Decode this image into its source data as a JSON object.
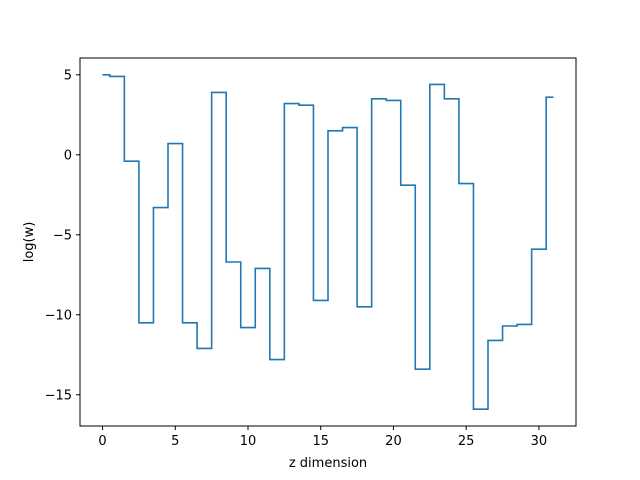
{
  "chart_data": {
    "type": "line",
    "drawstyle": "steps-mid",
    "xlabel": "z dimension",
    "ylabel": "log(w)",
    "xlim": [
      -1.55,
      32.55
    ],
    "ylim": [
      -16.95,
      6.05
    ],
    "x_ticks": [
      0,
      5,
      10,
      15,
      20,
      25,
      30
    ],
    "y_ticks": [
      5,
      0,
      -5,
      -10,
      -15
    ],
    "y_tick_labels": [
      "5",
      "0",
      "−5",
      "−10",
      "−15"
    ],
    "grid": false,
    "line_color": "#1f77b4",
    "series": [
      {
        "x": [
          0,
          1,
          2,
          3,
          4,
          5,
          6,
          7,
          8,
          9,
          10,
          11,
          12,
          13,
          14,
          15,
          16,
          17,
          18,
          19,
          20,
          21,
          22,
          23,
          24,
          25,
          26,
          27,
          28,
          29,
          30,
          31
        ],
        "values": [
          5.0,
          4.9,
          -0.4,
          -10.5,
          -3.3,
          0.7,
          -10.5,
          -12.1,
          3.9,
          -6.7,
          -10.8,
          -7.1,
          -12.8,
          3.2,
          3.1,
          -9.1,
          1.5,
          1.7,
          -9.5,
          3.5,
          3.4,
          -1.9,
          -13.4,
          4.4,
          3.5,
          -1.8,
          -15.9,
          -11.6,
          -10.7,
          -10.6,
          -5.9,
          3.6
        ]
      }
    ]
  }
}
